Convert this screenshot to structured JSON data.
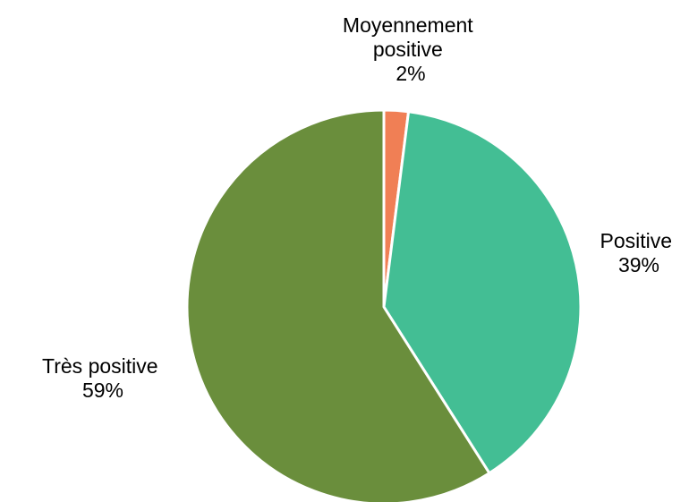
{
  "chart_data": {
    "type": "pie",
    "title": "",
    "slices": [
      {
        "label_lines": [
          "Moyennement",
          "positive"
        ],
        "percent_label": "2%",
        "value": 2,
        "color": "#F07F55"
      },
      {
        "label_lines": [
          "Positive"
        ],
        "percent_label": "39%",
        "value": 39,
        "color": "#43BE94"
      },
      {
        "label_lines": [
          "Très positive"
        ],
        "percent_label": "59%",
        "value": 59,
        "color": "#6A8E3C"
      }
    ],
    "start_angle_deg": 0,
    "direction": "clockwise",
    "separator_color": "#FFFFFF",
    "legend": "none"
  }
}
